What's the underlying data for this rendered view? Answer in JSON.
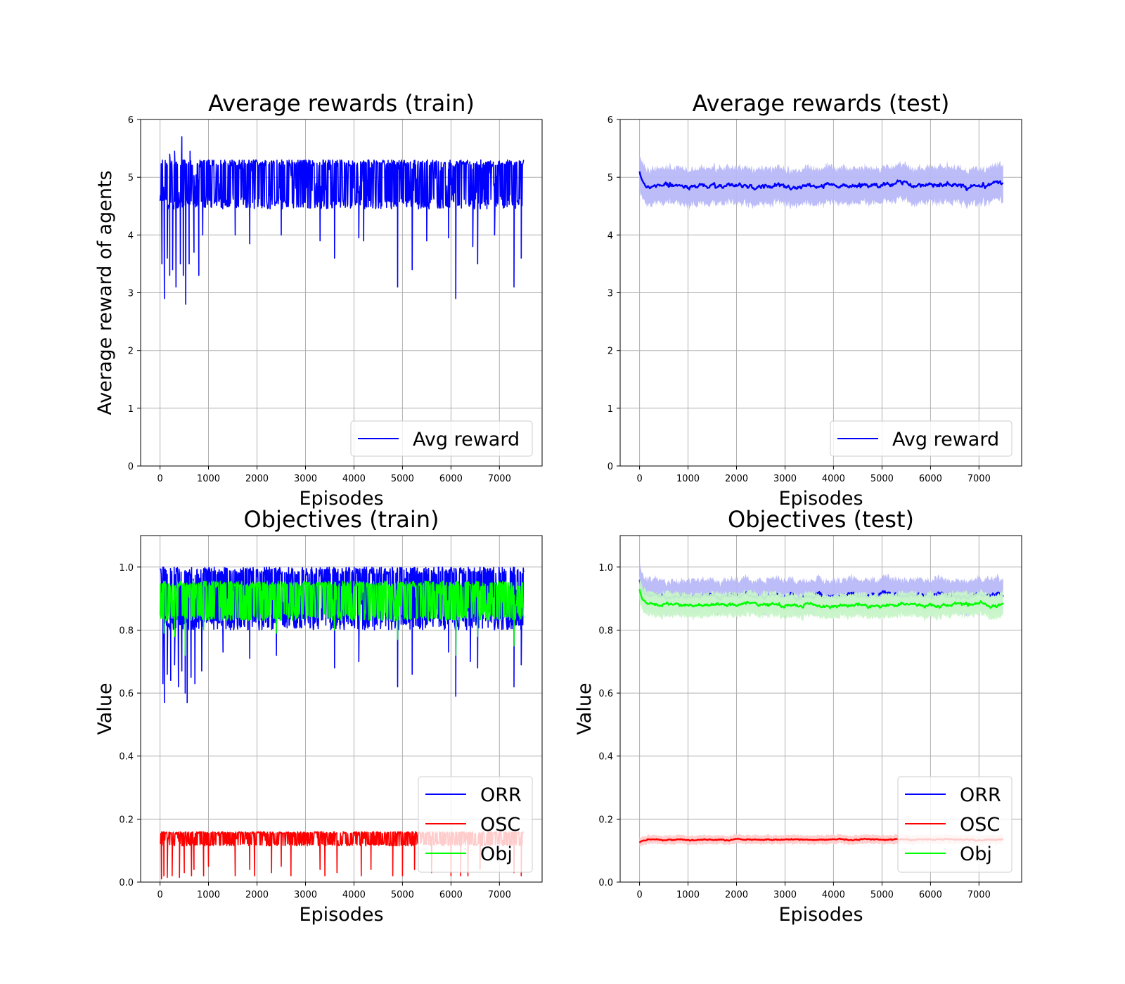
{
  "colors": {
    "blue": "#0000ff",
    "red": "#ff0000",
    "green": "#00ff00",
    "blue_band": "#b8b8f8",
    "red_band": "#ffcccc",
    "green_band": "#c8f5c8",
    "grid": "#b0b0b0",
    "legend_border": "#cccccc"
  },
  "chart_data": [
    {
      "id": "rewards_train",
      "type": "line",
      "title": "Average rewards (train)",
      "xlabel": "Episodes",
      "ylabel": "Average reward of agents",
      "xlim": [
        -400,
        7880
      ],
      "ylim": [
        0,
        6
      ],
      "xticks": [
        0,
        1000,
        2000,
        3000,
        4000,
        5000,
        6000,
        7000
      ],
      "yticks": [
        0,
        1,
        2,
        3,
        4,
        5,
        6
      ],
      "ytick_labels": [
        "0",
        "1",
        "2",
        "3",
        "4",
        "5",
        "6"
      ],
      "grid": true,
      "legend": "lower-right",
      "legend_rows": 1,
      "episodes": 7500,
      "series": [
        {
          "name": "Avg reward",
          "color": "blue",
          "style": "noisy",
          "band": 0,
          "mean": 4.9,
          "upper": 5.3,
          "lower": 4.45,
          "dips": [
            [
              40,
              3.5
            ],
            [
              90,
              2.9
            ],
            [
              150,
              3.6
            ],
            [
              200,
              3.3
            ],
            [
              260,
              3.4
            ],
            [
              330,
              3.1
            ],
            [
              420,
              3.5
            ],
            [
              480,
              3.3
            ],
            [
              530,
              2.8
            ],
            [
              600,
              3.5
            ],
            [
              700,
              3.7
            ],
            [
              800,
              3.3
            ],
            [
              880,
              4.0
            ],
            [
              1550,
              4.0
            ],
            [
              1850,
              3.85
            ],
            [
              2500,
              4.0
            ],
            [
              3300,
              3.9
            ],
            [
              3600,
              3.6
            ],
            [
              4100,
              3.95
            ],
            [
              4200,
              3.9
            ],
            [
              4900,
              3.1
            ],
            [
              5200,
              3.4
            ],
            [
              5500,
              3.9
            ],
            [
              5950,
              3.95
            ],
            [
              6100,
              2.9
            ],
            [
              6450,
              3.8
            ],
            [
              6550,
              3.5
            ],
            [
              6900,
              4.0
            ],
            [
              7300,
              3.1
            ],
            [
              7450,
              3.6
            ]
          ],
          "spikes": [
            [
              200,
              5.4
            ],
            [
              300,
              5.45
            ],
            [
              450,
              5.7
            ],
            [
              620,
              5.45
            ]
          ]
        }
      ]
    },
    {
      "id": "rewards_test",
      "type": "line",
      "title": "Average rewards (test)",
      "xlabel": "Episodes",
      "ylabel": "",
      "xlim": [
        -400,
        7880
      ],
      "ylim": [
        0,
        6
      ],
      "xticks": [
        0,
        1000,
        2000,
        3000,
        4000,
        5000,
        6000,
        7000
      ],
      "yticks": [
        0,
        1,
        2,
        3,
        4,
        5,
        6
      ],
      "ytick_labels": [
        "0",
        "1",
        "2",
        "3",
        "4",
        "5",
        "6"
      ],
      "grid": true,
      "legend": "lower-right",
      "legend_rows": 1,
      "episodes": 7500,
      "series": [
        {
          "name": "Avg reward",
          "color": "blue",
          "style": "smooth",
          "band": 0.33,
          "mean": 4.86,
          "start": 5.1
        }
      ]
    },
    {
      "id": "objectives_train",
      "type": "line",
      "title": "Objectives (train)",
      "xlabel": "Episodes",
      "ylabel": "Value",
      "xlim": [
        -400,
        7880
      ],
      "ylim": [
        0,
        1.1
      ],
      "xticks": [
        0,
        1000,
        2000,
        3000,
        4000,
        5000,
        6000,
        7000
      ],
      "yticks": [
        0,
        0.2,
        0.4,
        0.6,
        0.8,
        1.0
      ],
      "ytick_labels": [
        "0.0",
        "0.2",
        "0.4",
        "0.6",
        "0.8",
        "1.0"
      ],
      "grid": true,
      "legend": "lower-right",
      "legend_rows": 3,
      "episodes": 7500,
      "series": [
        {
          "name": "ORR",
          "color": "blue",
          "style": "noisy",
          "band": 0,
          "mean": 0.9,
          "upper": 1.0,
          "lower": 0.8,
          "dips": [
            [
              60,
              0.63
            ],
            [
              90,
              0.57
            ],
            [
              150,
              0.66
            ],
            [
              220,
              0.64
            ],
            [
              300,
              0.69
            ],
            [
              380,
              0.62
            ],
            [
              450,
              0.67
            ],
            [
              520,
              0.6
            ],
            [
              560,
              0.57
            ],
            [
              640,
              0.65
            ],
            [
              720,
              0.63
            ],
            [
              860,
              0.67
            ],
            [
              1300,
              0.73
            ],
            [
              1850,
              0.71
            ],
            [
              2400,
              0.72
            ],
            [
              3600,
              0.68
            ],
            [
              4100,
              0.7
            ],
            [
              4900,
              0.62
            ],
            [
              5200,
              0.66
            ],
            [
              5950,
              0.73
            ],
            [
              6100,
              0.59
            ],
            [
              6400,
              0.7
            ],
            [
              6550,
              0.68
            ],
            [
              7300,
              0.62
            ],
            [
              7450,
              0.69
            ]
          ]
        },
        {
          "name": "OSC",
          "color": "red",
          "style": "noisy",
          "band": 0,
          "mean": 0.135,
          "upper": 0.16,
          "lower": 0.115,
          "fade_after": 5300,
          "dips": [
            [
              30,
              0.01
            ],
            [
              80,
              0.02
            ],
            [
              150,
              0.015
            ],
            [
              250,
              0.02
            ],
            [
              400,
              0.015
            ],
            [
              500,
              0.03
            ],
            [
              650,
              0.02
            ],
            [
              700,
              0.04
            ],
            [
              900,
              0.02
            ],
            [
              1000,
              0.05
            ],
            [
              1550,
              0.02
            ],
            [
              1850,
              0.04
            ],
            [
              1950,
              0.02
            ],
            [
              2300,
              0.03
            ],
            [
              2500,
              0.05
            ],
            [
              2700,
              0.02
            ],
            [
              3300,
              0.04
            ],
            [
              3400,
              0.02
            ],
            [
              3650,
              0.03
            ],
            [
              4150,
              0.02
            ],
            [
              4350,
              0.04
            ],
            [
              4800,
              0.02
            ],
            [
              5000,
              0.02
            ],
            [
              5250,
              0.04
            ],
            [
              5600,
              0.03
            ],
            [
              6000,
              0.02
            ],
            [
              6200,
              0.02
            ],
            [
              6350,
              0.02
            ],
            [
              6600,
              0.04
            ],
            [
              7300,
              0.03
            ],
            [
              7450,
              0.02
            ]
          ]
        },
        {
          "name": "Obj",
          "color": "green",
          "style": "noisy",
          "band": 0,
          "mean": 0.885,
          "upper": 0.955,
          "lower": 0.83,
          "dips": [
            [
              80,
              0.79
            ],
            [
              300,
              0.78
            ],
            [
              520,
              0.72
            ],
            [
              900,
              0.8
            ],
            [
              2400,
              0.79
            ],
            [
              3600,
              0.8
            ],
            [
              4900,
              0.77
            ],
            [
              6100,
              0.72
            ],
            [
              6550,
              0.78
            ],
            [
              7300,
              0.75
            ]
          ]
        }
      ]
    },
    {
      "id": "objectives_test",
      "type": "line",
      "title": "Objectives (test)",
      "xlabel": "Episodes",
      "ylabel": "Value",
      "xlim": [
        -400,
        7880
      ],
      "ylim": [
        0,
        1.1
      ],
      "xticks": [
        0,
        1000,
        2000,
        3000,
        4000,
        5000,
        6000,
        7000
      ],
      "yticks": [
        0,
        0.2,
        0.4,
        0.6,
        0.8,
        1.0
      ],
      "ytick_labels": [
        "0.0",
        "0.2",
        "0.4",
        "0.6",
        "0.8",
        "1.0"
      ],
      "grid": true,
      "legend": "lower-right",
      "legend_rows": 3,
      "episodes": 7500,
      "series": [
        {
          "name": "ORR",
          "color": "blue",
          "style": "smooth",
          "band": 0.055,
          "mean": 0.91,
          "start": 0.96
        },
        {
          "name": "OSC",
          "color": "red",
          "style": "smooth",
          "band": 0.015,
          "mean": 0.135,
          "start": 0.125,
          "fade_after": 5300
        },
        {
          "name": "Obj",
          "color": "green",
          "style": "smooth",
          "band": 0.04,
          "mean": 0.88,
          "start": 0.93
        }
      ]
    }
  ]
}
